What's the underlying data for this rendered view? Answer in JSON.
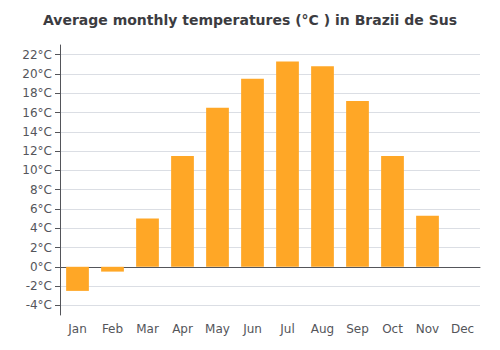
{
  "chart_data": {
    "type": "bar",
    "title": "Average monthly temperatures (°C ) in Brazii de Sus",
    "categories": [
      "Jan",
      "Feb",
      "Mar",
      "Apr",
      "May",
      "Jun",
      "Jul",
      "Aug",
      "Sep",
      "Oct",
      "Nov",
      "Dec"
    ],
    "values": [
      -2.5,
      -0.5,
      5.0,
      11.5,
      16.5,
      19.5,
      21.3,
      20.8,
      17.2,
      11.5,
      5.3,
      0.0
    ],
    "color": "#FFA726",
    "ylim": [
      -5,
      23
    ],
    "yticks": [
      {
        "value": -4,
        "label": "-4°C"
      },
      {
        "value": -2,
        "label": "-2°C"
      },
      {
        "value": 0,
        "label": "0°C"
      },
      {
        "value": 2,
        "label": "2°C"
      },
      {
        "value": 4,
        "label": "4°C"
      },
      {
        "value": 6,
        "label": "6°C"
      },
      {
        "value": 8,
        "label": "8°C"
      },
      {
        "value": 10,
        "label": "10°C"
      },
      {
        "value": 12,
        "label": "12°C"
      },
      {
        "value": 14,
        "label": "14°C"
      },
      {
        "value": 16,
        "label": "16°C"
      },
      {
        "value": 18,
        "label": "18°C"
      },
      {
        "value": 20,
        "label": "20°C"
      },
      {
        "value": 22,
        "label": "22°C"
      }
    ],
    "grid": true
  }
}
